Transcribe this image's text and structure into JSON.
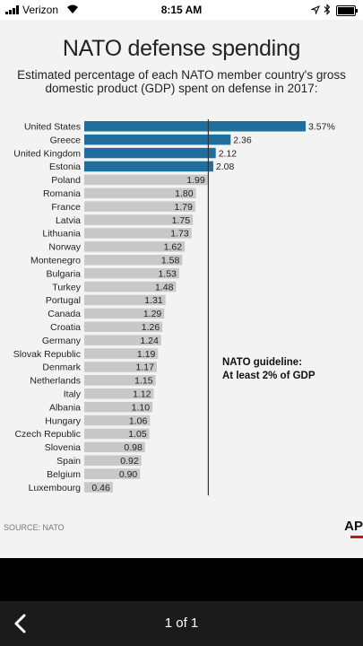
{
  "status_bar": {
    "carrier": "Verizon",
    "time": "8:15 AM",
    "icons": [
      "signal-bars-icon",
      "wifi-icon",
      "location-arrow-icon",
      "bluetooth-icon",
      "battery-icon"
    ]
  },
  "infographic": {
    "title": "NATO defense spending",
    "subtitle_line1": "Estimated percentage of each NATO member country's gross",
    "subtitle_line2": "domestic product (GDP) spent on defense in 2017:",
    "guideline_line1": "NATO guideline:",
    "guideline_line2": "At least 2% of GDP",
    "source": "SOURCE: NATO",
    "logo": "AP"
  },
  "chart_data": {
    "type": "bar",
    "orientation": "horizontal",
    "categories": [
      "United States",
      "Greece",
      "United Kingdom",
      "Estonia",
      "Poland",
      "Romania",
      "France",
      "Latvia",
      "Lithuania",
      "Norway",
      "Montenegro",
      "Bulgaria",
      "Turkey",
      "Portugal",
      "Canada",
      "Croatia",
      "Germany",
      "Slovak Republic",
      "Denmark",
      "Netherlands",
      "Italy",
      "Albania",
      "Hungary",
      "Czech Republic",
      "Slovenia",
      "Spain",
      "Belgium",
      "Luxembourg"
    ],
    "values": [
      3.57,
      2.36,
      2.12,
      2.08,
      1.99,
      1.8,
      1.79,
      1.75,
      1.73,
      1.62,
      1.58,
      1.53,
      1.48,
      1.31,
      1.29,
      1.26,
      1.24,
      1.19,
      1.17,
      1.15,
      1.12,
      1.1,
      1.06,
      1.05,
      0.98,
      0.92,
      0.9,
      0.46
    ],
    "value_labels": [
      "3.57%",
      "2.36",
      "2.12",
      "2.08",
      "1.99",
      "1.80",
      "1.79",
      "1.75",
      "1.73",
      "1.62",
      "1.58",
      "1.53",
      "1.48",
      "1.31",
      "1.29",
      "1.26",
      "1.24",
      "1.19",
      "1.17",
      "1.15",
      "1.12",
      "1.10",
      "1.06",
      "1.05",
      "0.98",
      "0.92",
      "0.90",
      "0.46"
    ],
    "reference_line": 2,
    "highlight_color": "#1f6f9e",
    "bar_color": "#c8c8c8",
    "guideline_color": "#333333"
  },
  "bottom_bar": {
    "back_icon": "chevron-left-icon",
    "page_indicator": "1 of 1"
  }
}
